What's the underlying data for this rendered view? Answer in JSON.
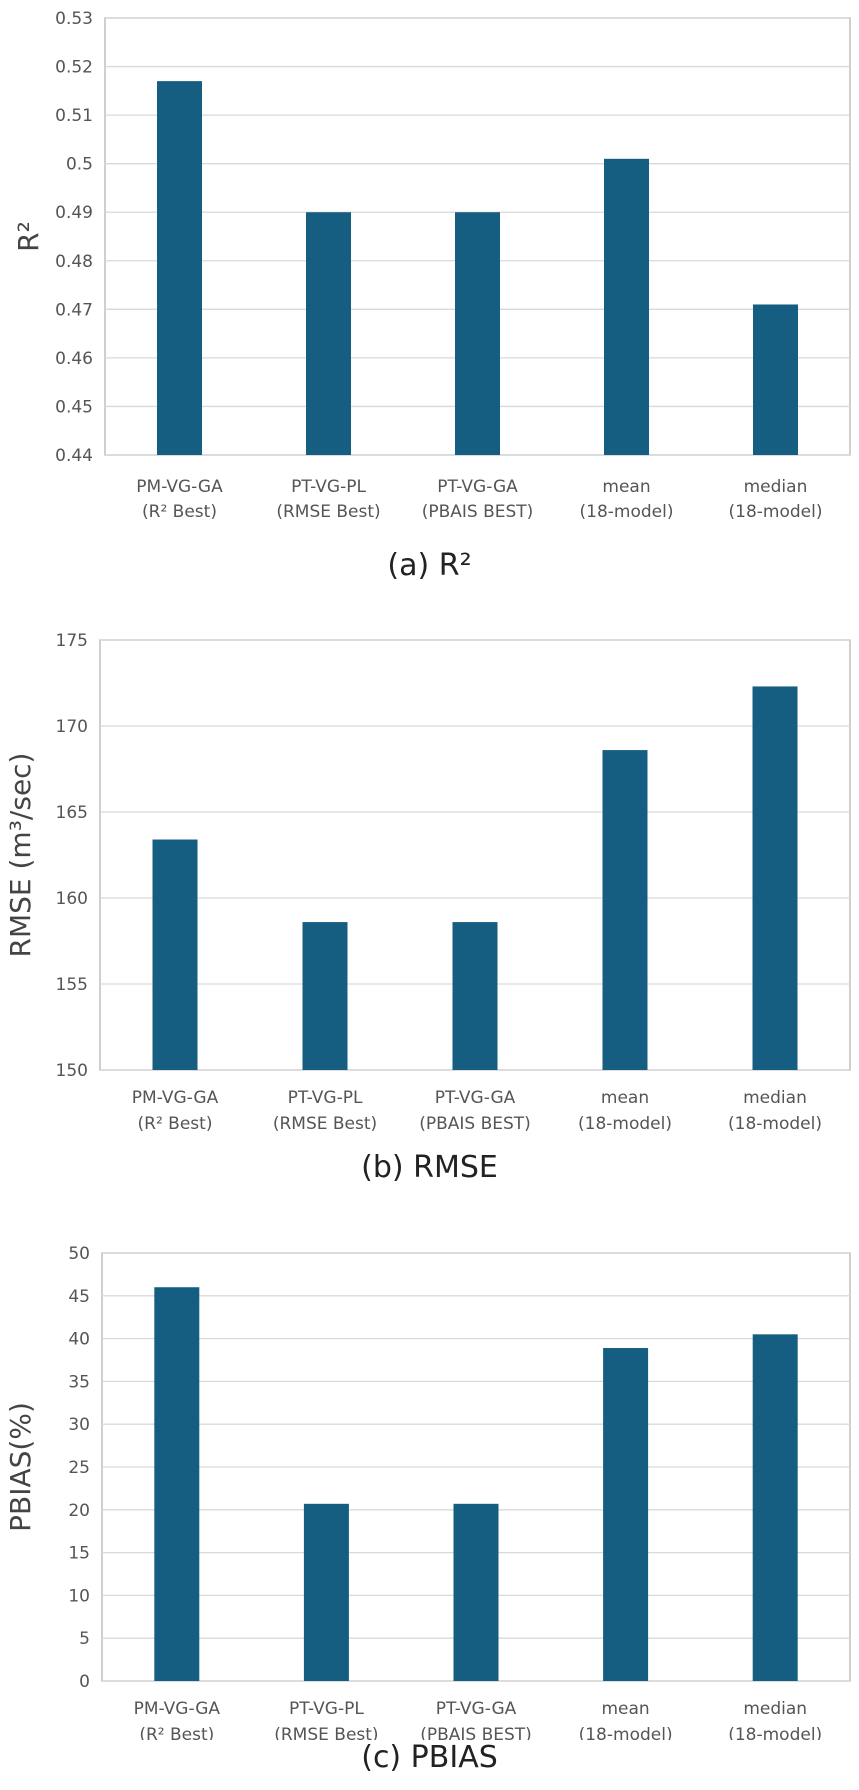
{
  "colors": {
    "bar": "#155e82",
    "grid": "#d9d9d9",
    "frame": "#bfbfbf"
  },
  "chart_data": [
    {
      "type": "bar",
      "panel": "a",
      "caption": "(a) R²",
      "ylabel": "R²",
      "categories": [
        [
          "PM-VG-GA",
          "(R² Best)"
        ],
        [
          "PT-VG-PL",
          "(RMSE Best)"
        ],
        [
          "PT-VG-GA",
          "(PBAIS BEST)"
        ],
        [
          "mean",
          "(18-model)"
        ],
        [
          "median",
          "(18-model)"
        ]
      ],
      "values": [
        0.517,
        0.49,
        0.49,
        0.501,
        0.471
      ],
      "ylim": [
        0.44,
        0.53
      ],
      "yticks": [
        "0.44",
        "0.45",
        "0.46",
        "0.47",
        "0.48",
        "0.49",
        "0.5",
        "0.51",
        "0.52",
        "0.53"
      ],
      "grid": true
    },
    {
      "type": "bar",
      "panel": "b",
      "caption": "(b) RMSE",
      "ylabel": "RMSE (m³/sec)",
      "categories": [
        [
          "PM-VG-GA",
          "(R² Best)"
        ],
        [
          "PT-VG-PL",
          "(RMSE Best)"
        ],
        [
          "PT-VG-GA",
          "(PBAIS BEST)"
        ],
        [
          "mean",
          "(18-model)"
        ],
        [
          "median",
          "(18-model)"
        ]
      ],
      "values": [
        163.4,
        158.6,
        158.6,
        168.6,
        172.3
      ],
      "ylim": [
        150,
        175
      ],
      "yticks": [
        "150",
        "155",
        "160",
        "165",
        "170",
        "175"
      ],
      "grid": true
    },
    {
      "type": "bar",
      "panel": "c",
      "caption": "(c) PBIAS",
      "ylabel": "PBIAS(%)",
      "categories": [
        [
          "PM-VG-GA",
          "(R² Best)"
        ],
        [
          "PT-VG-PL",
          "(RMSE Best)"
        ],
        [
          "PT-VG-GA",
          "(PBAIS BEST)"
        ],
        [
          "mean",
          "(18-model)"
        ],
        [
          "median",
          "(18-model)"
        ]
      ],
      "values": [
        46.0,
        20.7,
        20.7,
        38.9,
        40.5
      ],
      "ylim": [
        0,
        50
      ],
      "yticks": [
        "0",
        "5",
        "10",
        "15",
        "20",
        "25",
        "30",
        "35",
        "40",
        "45",
        "50"
      ],
      "grid": true
    }
  ]
}
